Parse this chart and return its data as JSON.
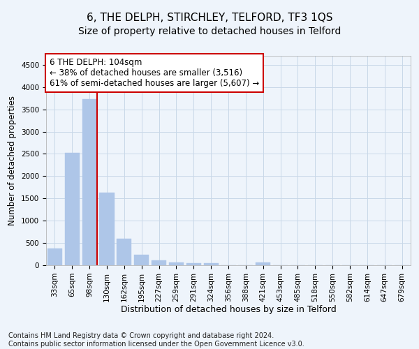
{
  "title": "6, THE DELPH, STIRCHLEY, TELFORD, TF3 1QS",
  "subtitle": "Size of property relative to detached houses in Telford",
  "xlabel": "Distribution of detached houses by size in Telford",
  "ylabel": "Number of detached properties",
  "categories": [
    "33sqm",
    "65sqm",
    "98sqm",
    "130sqm",
    "162sqm",
    "195sqm",
    "227sqm",
    "259sqm",
    "291sqm",
    "324sqm",
    "356sqm",
    "388sqm",
    "421sqm",
    "453sqm",
    "485sqm",
    "518sqm",
    "550sqm",
    "582sqm",
    "614sqm",
    "647sqm",
    "679sqm"
  ],
  "values": [
    375,
    2520,
    3730,
    1630,
    600,
    240,
    110,
    65,
    45,
    45,
    0,
    0,
    65,
    0,
    0,
    0,
    0,
    0,
    0,
    0,
    0
  ],
  "bar_color": "#aec6e8",
  "bar_edgecolor": "#aec6e8",
  "grid_color": "#c8d8e8",
  "background_color": "#eef4fb",
  "vline_index": 2,
  "vline_color": "#cc0000",
  "annotation_text": "6 THE DELPH: 104sqm\n← 38% of detached houses are smaller (3,516)\n61% of semi-detached houses are larger (5,607) →",
  "annotation_box_color": "#ffffff",
  "annotation_box_edgecolor": "#cc0000",
  "ylim": [
    0,
    4700
  ],
  "yticks": [
    0,
    500,
    1000,
    1500,
    2000,
    2500,
    3000,
    3500,
    4000,
    4500
  ],
  "footnote": "Contains HM Land Registry data © Crown copyright and database right 2024.\nContains public sector information licensed under the Open Government Licence v3.0.",
  "title_fontsize": 11,
  "subtitle_fontsize": 10,
  "xlabel_fontsize": 9,
  "ylabel_fontsize": 8.5,
  "tick_fontsize": 7.5,
  "annotation_fontsize": 8.5,
  "footnote_fontsize": 7
}
